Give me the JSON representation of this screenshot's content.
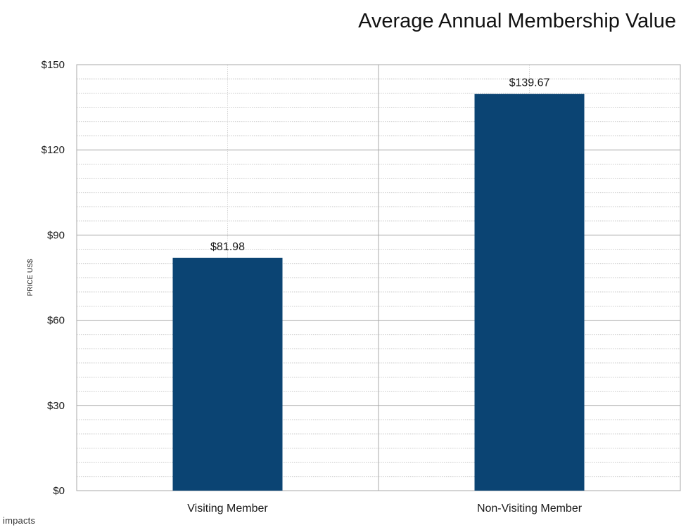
{
  "chart_data": {
    "type": "bar",
    "title": "Average Annual Membership Value",
    "ylabel": "PRICE US$",
    "xlabel": "",
    "categories": [
      "Visiting Member",
      "Non-Visiting Member"
    ],
    "values": [
      81.98,
      139.67
    ],
    "value_labels": [
      "$81.98",
      "$139.67"
    ],
    "ylim": [
      0,
      150
    ],
    "yticks": [
      0,
      30,
      60,
      90,
      120,
      150
    ],
    "ytick_labels": [
      "$0",
      "$30",
      "$60",
      "$90",
      "$120",
      "$150"
    ],
    "bar_color": "#0b4473",
    "grid": true
  },
  "branding": {
    "text": "impacts"
  }
}
